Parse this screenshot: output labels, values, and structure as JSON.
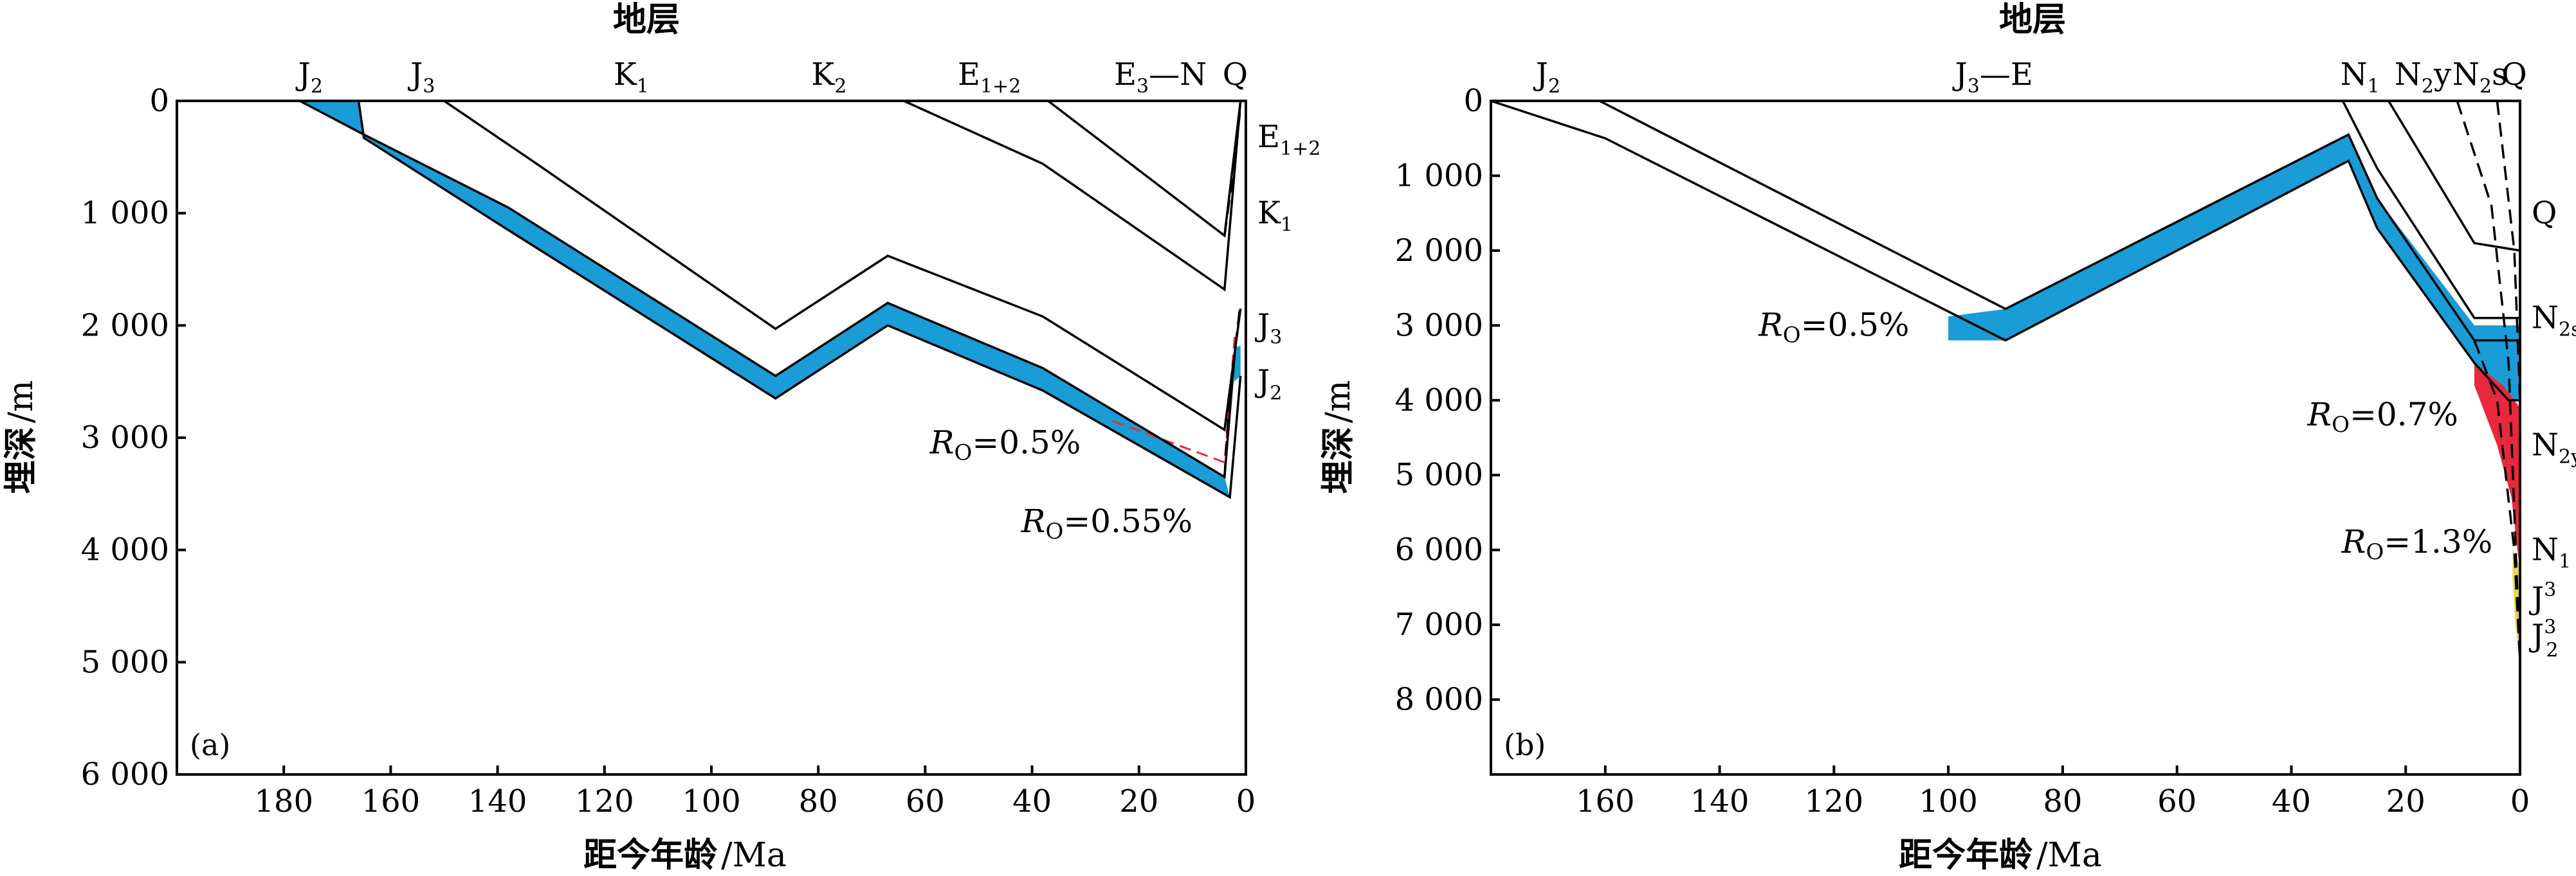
{
  "colors": {
    "source_rock": "#1a9cd6",
    "mature": "#e8283c",
    "high_mature": "#e8d84a",
    "line": "#000000"
  },
  "chart_data": [
    {
      "type": "line",
      "panel_label": "(a)",
      "top_title": "地层",
      "xlabel_text": "距今年龄",
      "xlabel_unit": "Ma",
      "ylabel_text": "埋深",
      "ylabel_unit": "m",
      "xlim": [
        200,
        0
      ],
      "ylim": [
        0,
        6000
      ],
      "xticks": [
        180,
        160,
        140,
        120,
        100,
        80,
        60,
        40,
        20,
        0
      ],
      "xtick_labels": [
        "180",
        "160",
        "140",
        "120",
        "100",
        "80",
        "60",
        "40",
        "20",
        "0"
      ],
      "yticks": [
        0,
        1000,
        2000,
        3000,
        4000,
        5000,
        6000
      ],
      "ytick_labels": [
        "0",
        "1 000",
        "2 000",
        "3 000",
        "4 000",
        "5 000",
        "6 000"
      ],
      "strata_top": [
        {
          "base": "J",
          "sub": "2",
          "x": 175
        },
        {
          "base": "J",
          "sub": "3",
          "x": 154
        },
        {
          "base": "K",
          "sub": "1",
          "x": 115
        },
        {
          "base": "K",
          "sub": "2",
          "x": 78
        },
        {
          "base": "E",
          "sub": "1+2",
          "x": 48
        },
        {
          "base": "E",
          "sub": "3",
          "suffix": "—N",
          "x": 16
        },
        {
          "base": "Q",
          "sub": "",
          "x": 2
        }
      ],
      "strata_right": [
        {
          "base": "E",
          "sub": "1+2",
          "depth": 320
        },
        {
          "base": "K",
          "sub": "1",
          "depth": 1000
        },
        {
          "base": "J",
          "sub": "3",
          "depth": 2000
        },
        {
          "base": "J",
          "sub": "2",
          "depth": 2500
        }
      ],
      "horizons": [
        {
          "style": "solid",
          "points": [
            [
              177,
              0
            ],
            [
              165,
              300
            ],
            [
              138,
              950
            ],
            [
              88,
              2450
            ],
            [
              67,
              1800
            ],
            [
              38,
              2380
            ],
            [
              4,
              3350
            ],
            [
              2,
              2200
            ]
          ]
        },
        {
          "style": "solid",
          "points": [
            [
              166,
              0
            ],
            [
              165,
              330
            ],
            [
              138,
              1150
            ],
            [
              88,
              2650
            ],
            [
              67,
              2000
            ],
            [
              38,
              2580
            ],
            [
              3,
              3530
            ],
            [
              1,
              2450
            ]
          ]
        },
        {
          "style": "solid",
          "points": [
            [
              150,
              0
            ],
            [
              133,
              550
            ],
            [
              88,
              2030
            ],
            [
              67,
              1380
            ],
            [
              38,
              1920
            ],
            [
              4,
              2930
            ],
            [
              1,
              1850
            ]
          ]
        },
        {
          "style": "solid",
          "points": [
            [
              64,
              0
            ],
            [
              38,
              560
            ],
            [
              4,
              1680
            ],
            [
              1,
              0
            ]
          ]
        },
        {
          "style": "solid",
          "points": [
            [
              37,
              0
            ],
            [
              4,
              1200
            ],
            [
              1,
              0
            ]
          ]
        },
        {
          "style": "dashed",
          "points": [
            [
              4,
              1200
            ],
            [
              2,
              500
            ],
            [
              1,
              50
            ]
          ]
        },
        {
          "style": "dashed",
          "points": [
            [
              4,
              3350
            ],
            [
              3,
              2600
            ],
            [
              1,
              1800
            ]
          ]
        }
      ],
      "source_bands": [
        {
          "color": "source_rock",
          "top": [
            [
              177,
              0
            ],
            [
              165,
              300
            ],
            [
              138,
              950
            ],
            [
              88,
              2450
            ],
            [
              67,
              1800
            ],
            [
              38,
              2380
            ],
            [
              4,
              3350
            ]
          ],
          "bottom": [
            [
              3,
              3530
            ],
            [
              38,
              2580
            ],
            [
              67,
              2000
            ],
            [
              88,
              2650
            ],
            [
              138,
              1150
            ],
            [
              165,
              330
            ],
            [
              166,
              0
            ]
          ]
        },
        {
          "color": "source_rock",
          "top": [
            [
              2.2,
              2200
            ],
            [
              1,
              2180
            ]
          ],
          "bottom": [
            [
              1,
              2450
            ],
            [
              2.2,
              2500
            ]
          ]
        }
      ],
      "ro_lines": [
        {
          "color": "mature",
          "style": "dashed",
          "points": [
            [
              25,
              2850
            ],
            [
              4,
              3220
            ],
            [
              2,
              2050
            ]
          ]
        }
      ],
      "annotations": [
        {
          "prefix": "R",
          "sub": "O",
          "text": "=0.5%",
          "x": 45,
          "depth": 3050
        },
        {
          "prefix": "R",
          "sub": "O",
          "text": "=0.55%",
          "x": 26,
          "depth": 3750
        }
      ]
    },
    {
      "type": "line",
      "panel_label": "(b)",
      "top_title": "地层",
      "xlabel_text": "距今年龄",
      "xlabel_unit": "Ma",
      "ylabel_text": "埋深",
      "ylabel_unit": "m",
      "xlim": [
        180,
        0
      ],
      "ylim": [
        0,
        9000
      ],
      "xticks": [
        160,
        140,
        120,
        100,
        80,
        60,
        40,
        20,
        0
      ],
      "xtick_labels": [
        "160",
        "140",
        "120",
        "100",
        "80",
        "60",
        "40",
        "20",
        "0"
      ],
      "yticks": [
        0,
        1000,
        2000,
        3000,
        4000,
        5000,
        6000,
        7000,
        8000
      ],
      "ytick_labels": [
        "0",
        "1 000",
        "2 000",
        "3 000",
        "4 000",
        "5 000",
        "6 000",
        "7 000",
        "8 000"
      ],
      "strata_top": [
        {
          "base": "J",
          "sub": "2",
          "x": 170
        },
        {
          "base": "J",
          "sub": "3",
          "suffix": "—E",
          "x": 92
        },
        {
          "base": "N",
          "sub": "1",
          "x": 28
        },
        {
          "base": "N",
          "sub": "2",
          "suffix": "y",
          "x": 17
        },
        {
          "base": "N",
          "sub": "2",
          "suffix": "s",
          "x": 7
        },
        {
          "base": "Q",
          "sub": "",
          "x": 1
        }
      ],
      "strata_right": [
        {
          "base": "Q",
          "sub": "",
          "depth": 1500
        },
        {
          "base": "N",
          "sub": "2s",
          "depth": 2900
        },
        {
          "base": "N",
          "sub": "2y",
          "depth": 4600
        },
        {
          "base": "N",
          "sub": "1",
          "depth": 6000
        },
        {
          "base": "J",
          "sub": "3",
          "sup": true,
          "depth": 6650
        },
        {
          "base": "J",
          "sub": "2",
          "sup": "3",
          "depth": 7150
        }
      ],
      "horizons": [
        {
          "style": "solid",
          "points": [
            [
              180,
              0
            ],
            [
              160,
              500
            ],
            [
              90,
              3200
            ],
            [
              30,
              800
            ],
            [
              25,
              1700
            ],
            [
              8,
              3500
            ],
            [
              2,
              4000
            ],
            [
              0,
              4000
            ]
          ]
        },
        {
          "style": "solid",
          "points": [
            [
              161,
              0
            ],
            [
              90,
              2780
            ],
            [
              30,
              450
            ],
            [
              25,
              1300
            ],
            [
              8,
              3200
            ],
            [
              0,
              3200
            ]
          ]
        },
        {
          "style": "solid",
          "points": [
            [
              31,
              0
            ],
            [
              25,
              900
            ],
            [
              8,
              2900
            ],
            [
              0,
              2900
            ]
          ]
        },
        {
          "style": "solid",
          "points": [
            [
              23,
              0
            ],
            [
              8,
              1900
            ],
            [
              0,
              2000
            ]
          ]
        },
        {
          "style": "dashed",
          "points": [
            [
              11,
              0
            ],
            [
              5,
              1400
            ],
            [
              2,
              3500
            ],
            [
              1,
              5500
            ],
            [
              0,
              7500
            ]
          ]
        },
        {
          "style": "dashed",
          "points": [
            [
              4,
              0
            ],
            [
              1,
              2000
            ],
            [
              0,
              4000
            ]
          ]
        },
        {
          "style": "dashed",
          "points": [
            [
              8,
              3200
            ],
            [
              4,
              4000
            ],
            [
              1,
              6000
            ],
            [
              0,
              7500
            ]
          ]
        }
      ],
      "source_bands": [
        {
          "color": "source_rock",
          "top": [
            [
              100,
              2880
            ],
            [
              90,
              2780
            ],
            [
              30,
              450
            ],
            [
              25,
              1300
            ],
            [
              8,
              3000
            ],
            [
              0,
              3000
            ]
          ],
          "bottom": [
            [
              0,
              4000
            ],
            [
              2,
              4000
            ],
            [
              8,
              3500
            ],
            [
              25,
              1700
            ],
            [
              30,
              800
            ],
            [
              90,
              3200
            ],
            [
              100,
              3200
            ]
          ]
        },
        {
          "color": "mature",
          "top": [
            [
              8,
              3500
            ],
            [
              3,
              3800
            ],
            [
              0,
              4100
            ]
          ],
          "bottom": [
            [
              0,
              6300
            ],
            [
              1.5,
              5300
            ],
            [
              4,
              4600
            ],
            [
              8,
              3800
            ]
          ]
        },
        {
          "color": "high_mature",
          "top": [
            [
              1.3,
              6000
            ],
            [
              0,
              6200
            ]
          ],
          "bottom": [
            [
              0,
              7500
            ],
            [
              0.8,
              7000
            ],
            [
              1.3,
              6400
            ]
          ]
        }
      ],
      "ro_lines": [],
      "annotations": [
        {
          "prefix": "R",
          "sub": "O",
          "text": "=0.5%",
          "x": 120,
          "depth": 3000
        },
        {
          "prefix": "R",
          "sub": "O",
          "text": "=0.7%",
          "x": 24,
          "depth": 4200
        },
        {
          "prefix": "R",
          "sub": "O",
          "text": "=1.3%",
          "x": 18,
          "depth": 5900
        }
      ]
    }
  ]
}
